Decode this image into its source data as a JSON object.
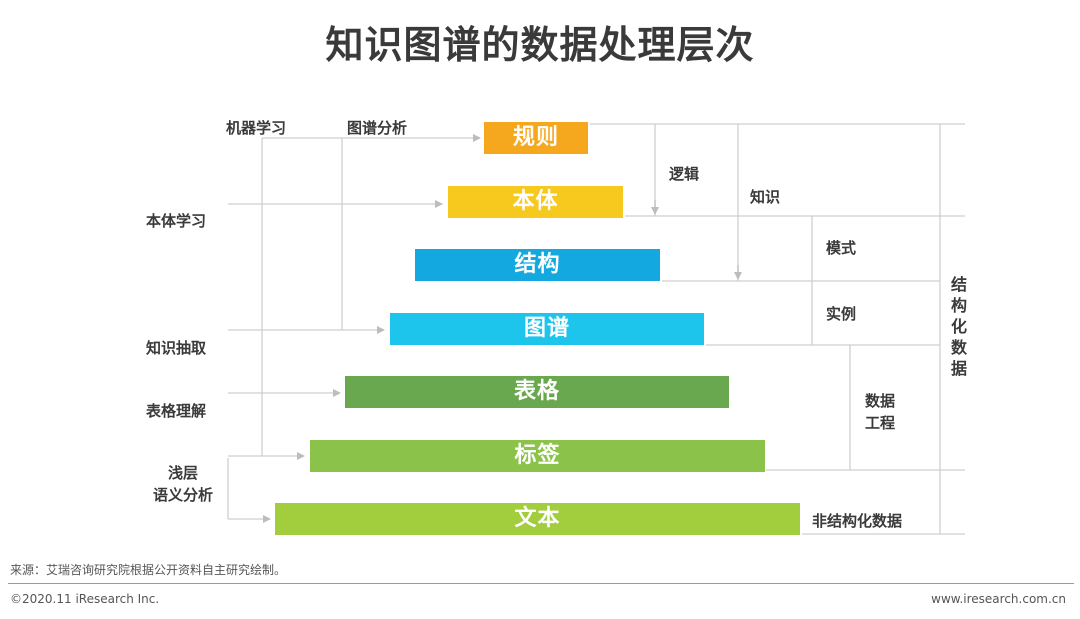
{
  "title": "知识图谱的数据处理层次",
  "layers": [
    {
      "label": "规则",
      "color": "#F5A81E"
    },
    {
      "label": "本体",
      "color": "#F7C81E"
    },
    {
      "label": "结构",
      "color": "#14A8E0"
    },
    {
      "label": "图谱",
      "color": "#1DC4EC"
    },
    {
      "label": "表格",
      "color": "#6AA84F"
    },
    {
      "label": "标签",
      "color": "#8BC34A"
    },
    {
      "label": "文本",
      "color": "#A2CD3D"
    }
  ],
  "methods": {
    "machine_learning": "机器学习",
    "graph_analysis": "图谱分析",
    "ontology_learning": "本体学习",
    "knowledge_extraction": "知识抽取",
    "table_understanding": "表格理解",
    "shallow_semantic_line1": "浅层",
    "shallow_semantic_line2": "语义分析"
  },
  "categories": {
    "logic": "逻辑",
    "knowledge": "知识",
    "schema": "模式",
    "instance": "实例",
    "data_eng_line1": "数据",
    "data_eng_line2": "工程",
    "structured_data": "结构化数据",
    "unstructured_data": "非结构化数据"
  },
  "source": "来源：艾瑞咨询研究院根据公开资料自主研究绘制。",
  "copyright": "©2020.11 iResearch Inc.",
  "website": "www.iresearch.com.cn",
  "colors": {
    "line": "#CFCFCF",
    "arrow": "#BDBDBD"
  }
}
